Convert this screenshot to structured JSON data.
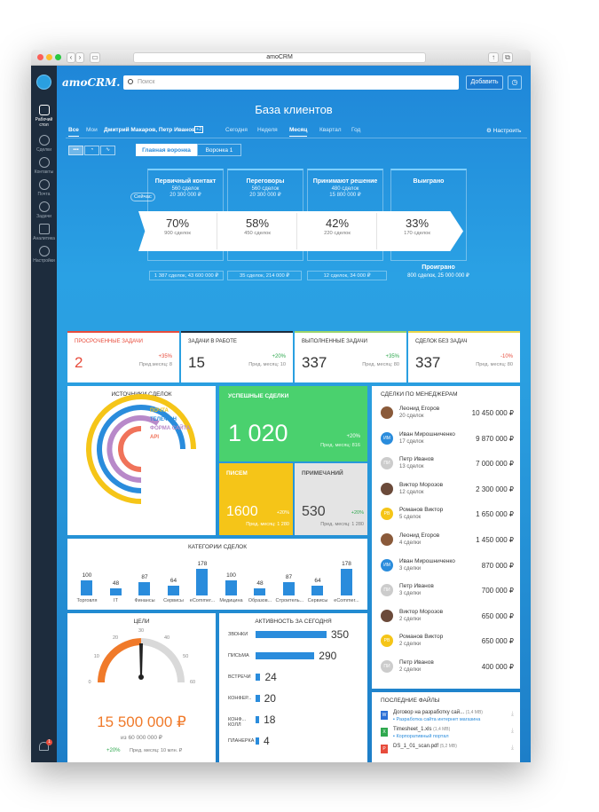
{
  "browser": {
    "url": "amoCRM"
  },
  "app": {
    "logo": "amoCRM.",
    "search_placeholder": "Поиск",
    "add_label": "Добавить"
  },
  "sidebar": {
    "items": [
      {
        "label": "Рабочий стол"
      },
      {
        "label": "Сделки"
      },
      {
        "label": "Контакты"
      },
      {
        "label": "Почта"
      },
      {
        "label": "Задачи"
      },
      {
        "label": "Аналитика"
      },
      {
        "label": "Настройки"
      }
    ],
    "notif": "1"
  },
  "page": {
    "title": "База клиентов"
  },
  "nav": {
    "all": "Все",
    "mine": "Мои",
    "users": "Дмитрий Макаров, Петр Иванов",
    "users_more": "+2",
    "today": "Сегодня",
    "week": "Неделя",
    "month": "Месяц",
    "quarter": "Квартал",
    "year": "Год",
    "settings": "Настроить"
  },
  "funnel": {
    "tabs": [
      "Главная воронка",
      "Воронка 1"
    ],
    "now": "Сейчас",
    "stages": [
      {
        "name": "Первичный контакт",
        "count": "560 сделок",
        "sum": "20 300 000 ₽"
      },
      {
        "name": "Переговоры",
        "count": "560 сделок",
        "sum": "20 300 000 ₽"
      },
      {
        "name": "Принимают решение",
        "count": "480 сделок",
        "sum": "15 800 000 ₽"
      },
      {
        "name": "Выиграно"
      }
    ],
    "conv": [
      {
        "pct": "70%",
        "deals": "900 сделок"
      },
      {
        "pct": "58%",
        "deals": "450 сделок"
      },
      {
        "pct": "42%",
        "deals": "220 сделок"
      },
      {
        "pct": "33%",
        "deals": "170 сделок"
      }
    ],
    "bottom": [
      "1 387 сделок, 43 600 000 ₽",
      "35 сделок, 214 000 ₽",
      "12 сделок, 34 000 ₽"
    ],
    "lost": {
      "label": "Проиграно",
      "value": "800 сделок, 25 000 000 ₽"
    }
  },
  "tasks": [
    {
      "title": "ПРОСРОЧЕННЫЕ ЗАДАЧИ",
      "value": "2",
      "change": "+35%",
      "prev": "Пред.месяц: 8",
      "color": "#e74c3c"
    },
    {
      "title": "ЗАДАЧИ В РАБОТЕ",
      "value": "15",
      "change": "+20%",
      "prev": "Пред. месяц: 10",
      "color": "#222222"
    },
    {
      "title": "ВЫПОЛНЕННЫЕ ЗАДАЧИ",
      "value": "337",
      "change": "+35%",
      "prev": "Пред. месяц: 80",
      "color": "#222222"
    },
    {
      "title": "СДЕЛОК БЕЗ ЗАДАЧ",
      "value": "337",
      "change": "-10%",
      "prev": "Пред. месяц: 80",
      "color": "#222222"
    }
  ],
  "sources": {
    "title": "ИСТОЧНИКИ СДЕЛОК",
    "legend": [
      {
        "label": "ПОЧТА",
        "color": "#f5c518"
      },
      {
        "label": "ТЕЛЕФОН",
        "color": "#2a8cdc"
      },
      {
        "label": "ФОРМА САЙТА",
        "color": "#b889c9"
      },
      {
        "label": "API",
        "color": "#f0735a"
      }
    ]
  },
  "success": {
    "title": "УСПЕШНЫЕ СДЕЛКИ",
    "value": "1 020",
    "change": "+20%",
    "prev": "Пред. месяц: 816"
  },
  "letters": {
    "title": "ПИСЕМ",
    "value": "1600",
    "change": "+20%",
    "prev": "Пред. месяц: 1 280"
  },
  "notes": {
    "title": "ПРИМЕЧАНИЙ",
    "value": "530",
    "change": "+20%",
    "prev": "Пред. месяц: 1 280"
  },
  "managers": {
    "title": "СДЕЛКИ ПО МЕНЕДЖЕРАМ",
    "rows": [
      {
        "name": "Леонид Егоров",
        "deals": "20 сделок",
        "amount": "10 450 000 ₽",
        "av": "photo",
        "color": "#8a5a3a",
        "init": ""
      },
      {
        "name": "Иван Мирошниченко",
        "deals": "17 сделок",
        "amount": "9 870 000 ₽",
        "av": "init",
        "color": "#2a8cdc",
        "init": "ИМ"
      },
      {
        "name": "Петр Иванов",
        "deals": "13 сделок",
        "amount": "7 000 000 ₽",
        "av": "init",
        "color": "#cccccc",
        "init": "ПИ"
      },
      {
        "name": "Виктор Морозов",
        "deals": "12 сделок",
        "amount": "2 300 000 ₽",
        "av": "photo",
        "color": "#6b4a3a",
        "init": ""
      },
      {
        "name": "Романов Виктор",
        "deals": "5 сделок",
        "amount": "1 650 000 ₽",
        "av": "init",
        "color": "#f5c518",
        "init": "РВ"
      },
      {
        "name": "Леонид Егоров",
        "deals": "4 сделки",
        "amount": "1 450 000 ₽",
        "av": "photo",
        "color": "#8a5a3a",
        "init": ""
      },
      {
        "name": "Иван Мирошниченко",
        "deals": "3 сделки",
        "amount": "870 000 ₽",
        "av": "init",
        "color": "#2a8cdc",
        "init": "ИМ"
      },
      {
        "name": "Петр Иванов",
        "deals": "3 сделки",
        "amount": "700 000 ₽",
        "av": "init",
        "color": "#cccccc",
        "init": "ПИ"
      },
      {
        "name": "Виктор Морозов",
        "deals": "2 сделки",
        "amount": "650 000 ₽",
        "av": "photo",
        "color": "#6b4a3a",
        "init": ""
      },
      {
        "name": "Романов Виктор",
        "deals": "2 сделки",
        "amount": "650 000 ₽",
        "av": "init",
        "color": "#f5c518",
        "init": "РВ"
      },
      {
        "name": "Петр Иванов",
        "deals": "2 сделки",
        "amount": "400 000 ₽",
        "av": "init",
        "color": "#cccccc",
        "init": "ПИ"
      }
    ]
  },
  "categories": {
    "title": "КАТЕГОРИИ СДЕЛОК"
  },
  "goals": {
    "title": "ЦЕЛИ",
    "value": "15 500 000 ₽",
    "target": "из 60 000 000 ₽",
    "change": "+20%",
    "prev": "Пред. месяц: 10 млн. ₽",
    "ticks": [
      "0",
      "10",
      "20",
      "30",
      "40",
      "50",
      "60"
    ]
  },
  "activity": {
    "title": "АКТИВНОСТЬ ЗА СЕГОДНЯ"
  },
  "files": {
    "title": "ПОСЛЕДНИЕ ФАЙЛЫ",
    "items": [
      {
        "name": "Договор на разработку сай...",
        "size": "(1,4 MB)",
        "folder": "Разработка сайта интернет магазина",
        "color": "#2a6fd6",
        "ext": "W"
      },
      {
        "name": "Timesheet_1.xls",
        "size": "(1,4 MB)",
        "folder": "Корпоративный портал",
        "color": "#2fa84f",
        "ext": "X"
      },
      {
        "name": "DS_1_01_scan.pdf",
        "size": "(5,2 MB)",
        "folder": "",
        "color": "#e74c3c",
        "ext": "P"
      }
    ]
  },
  "chart_data": [
    {
      "type": "bar",
      "title": "КАТЕГОРИИ СДЕЛОК",
      "categories": [
        "Торговля",
        "IT",
        "Финансы",
        "Сервисы",
        "eCommer...",
        "Медицина",
        "Образов...",
        "Строитель...",
        "Сервисы",
        "eCommer..."
      ],
      "values": [
        100,
        48,
        87,
        64,
        178,
        100,
        48,
        87,
        64,
        178
      ]
    },
    {
      "type": "bar",
      "title": "АКТИВНОСТЬ ЗА СЕГОДНЯ",
      "categories": [
        "ЗВОНКИ",
        "ПИСЬМА",
        "ВСТРЕЧИ",
        "КОНФЕР...",
        "КОНФ... КОЛЛ",
        "ПЛАНЕРКА"
      ],
      "values": [
        350,
        290,
        24,
        20,
        18,
        4
      ]
    }
  ]
}
